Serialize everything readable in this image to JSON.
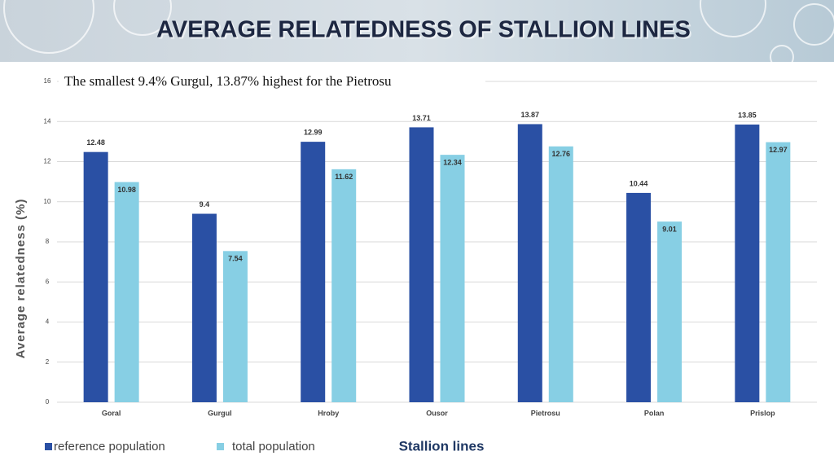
{
  "chart_data": {
    "type": "bar",
    "title": "AVERAGE RELATEDNESS OF STALLION LINES",
    "annotation": "The smallest  9.4% Gurgul, 13.87% highest for the Pietrosu",
    "x_label": "Stallion lines",
    "y_label": "Average relatedness (%)",
    "categories": [
      "Goral",
      "Gurgul",
      "Hroby",
      "Ousor",
      "Pietrosu",
      "Polan",
      "Prislop"
    ],
    "series": [
      {
        "name": "reference population",
        "color": "#2a50a4",
        "values": [
          12.48,
          9.4,
          12.99,
          13.71,
          13.87,
          10.44,
          13.85
        ]
      },
      {
        "name": "total population",
        "color": "#87cfe4",
        "values": [
          10.98,
          7.54,
          11.62,
          12.34,
          12.76,
          9.01,
          12.97
        ]
      }
    ],
    "ylim": [
      0,
      16
    ],
    "yticks": [
      0,
      2,
      4,
      6,
      8,
      10,
      12,
      14,
      16
    ],
    "grid": true,
    "legend": "bottom-left"
  }
}
